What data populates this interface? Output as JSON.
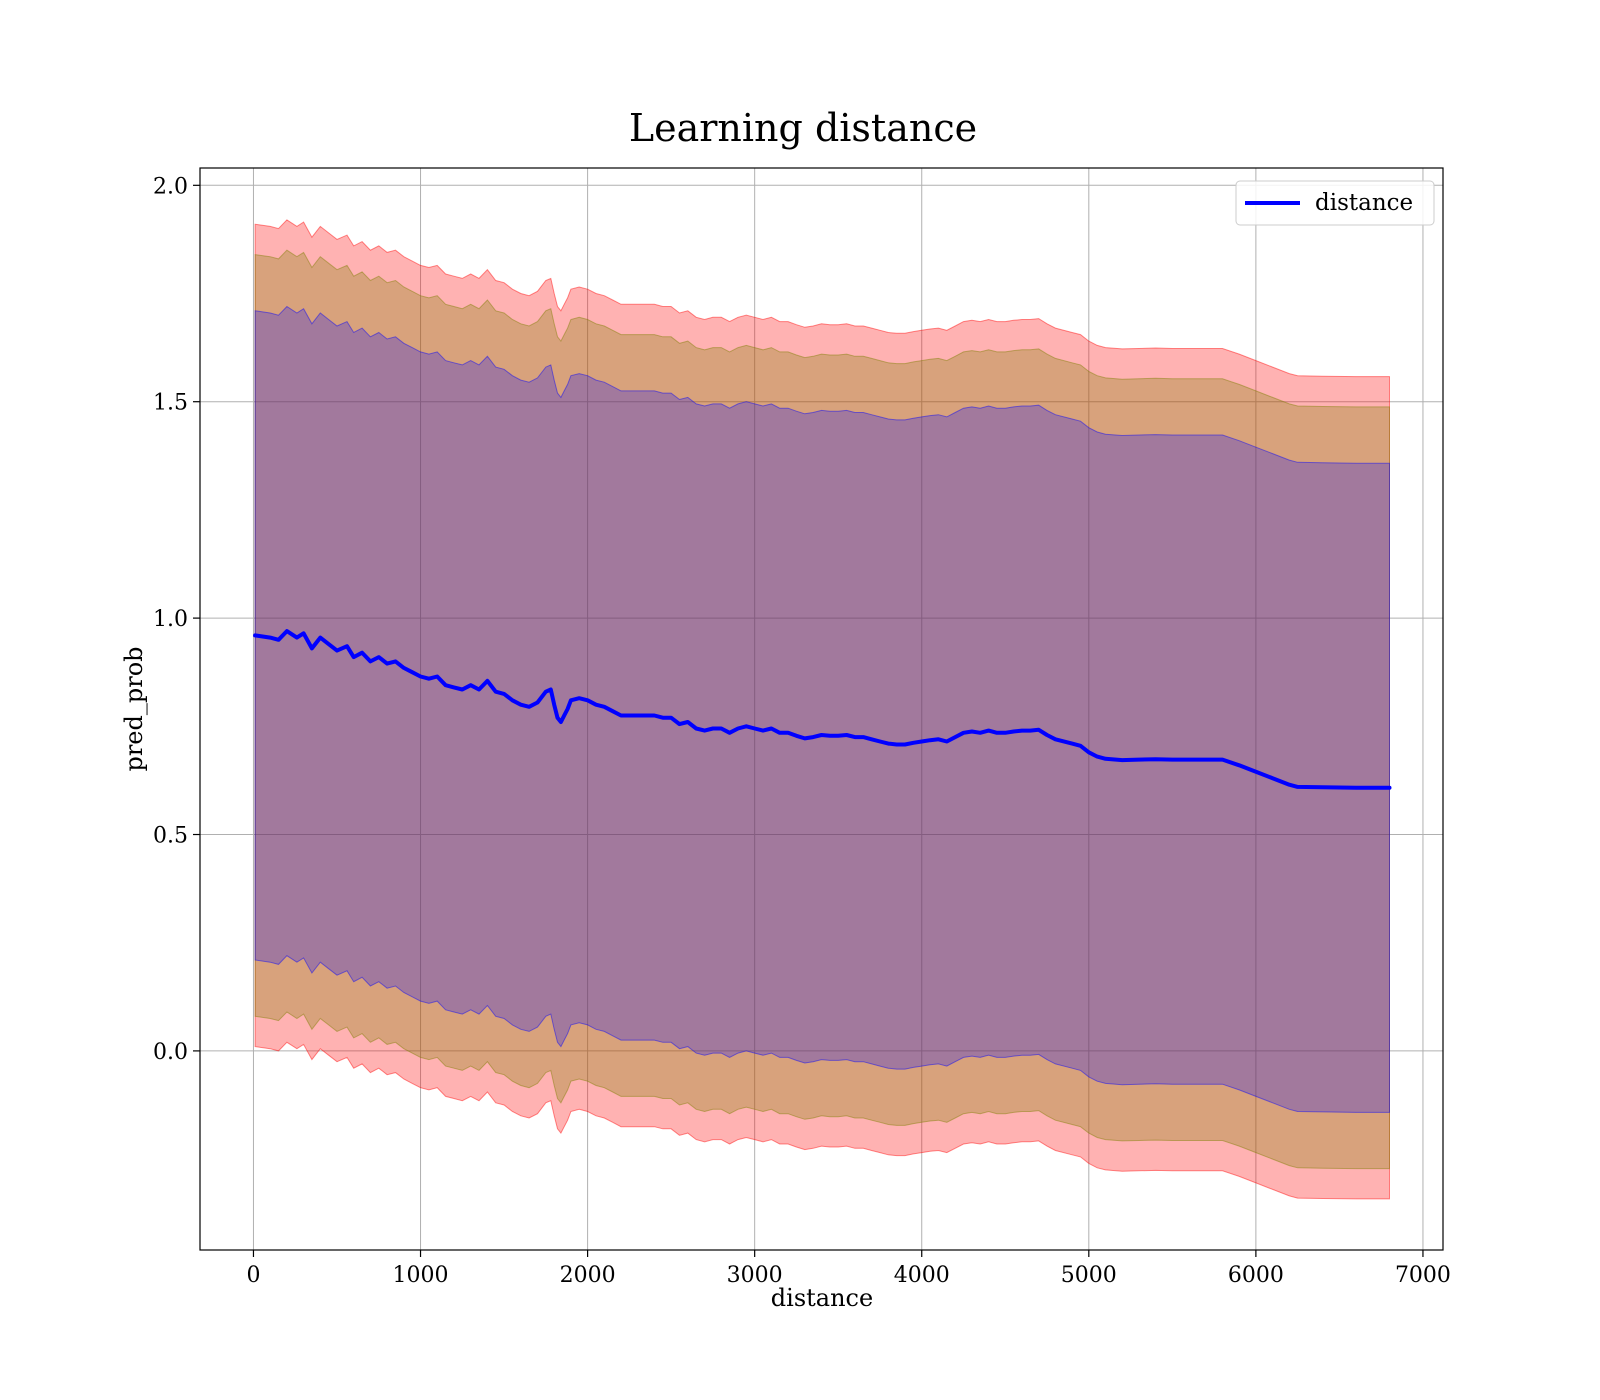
{
  "chart_data": {
    "type": "line",
    "title": "Learning distance",
    "xlabel": "distance",
    "ylabel": "pred_prob",
    "xlim": [
      -320,
      7120
    ],
    "ylim": [
      -0.46,
      2.04
    ],
    "xticks": [
      0,
      1000,
      2000,
      3000,
      4000,
      5000,
      6000,
      7000
    ],
    "xtick_labels": [
      "0",
      "1000",
      "2000",
      "3000",
      "4000",
      "5000",
      "6000",
      "7000"
    ],
    "yticks": [
      0.0,
      0.5,
      1.0,
      1.5,
      2.0
    ],
    "ytick_labels": [
      "0.0",
      "0.5",
      "1.0",
      "1.5",
      "2.0"
    ],
    "grid": true,
    "legend_position": "top-right",
    "series": [
      {
        "name": "distance",
        "color": "#0000ff",
        "x": [
          10,
          100,
          150,
          200,
          260,
          300,
          350,
          400,
          450,
          500,
          560,
          600,
          650,
          700,
          750,
          800,
          850,
          900,
          950,
          1000,
          1050,
          1100,
          1150,
          1200,
          1250,
          1300,
          1350,
          1400,
          1450,
          1500,
          1550,
          1600,
          1650,
          1700,
          1750,
          1780,
          1800,
          1820,
          1840,
          1860,
          1880,
          1900,
          1950,
          2000,
          2050,
          2100,
          2150,
          2200,
          2250,
          2300,
          2400,
          2450,
          2500,
          2550,
          2600,
          2650,
          2700,
          2750,
          2800,
          2850,
          2900,
          2950,
          3000,
          3050,
          3100,
          3150,
          3200,
          3250,
          3300,
          3350,
          3400,
          3450,
          3500,
          3550,
          3600,
          3650,
          3700,
          3750,
          3800,
          3850,
          3900,
          3950,
          4000,
          4050,
          4100,
          4150,
          4200,
          4250,
          4300,
          4350,
          4400,
          4450,
          4500,
          4550,
          4600,
          4650,
          4700,
          4750,
          4800,
          4900,
          4950,
          5000,
          5050,
          5100,
          5200,
          5300,
          5400,
          5500,
          5600,
          5700,
          5800,
          5900,
          6000,
          6100,
          6200,
          6250,
          6400,
          6600,
          6800
        ],
        "y": [
          0.96,
          0.955,
          0.95,
          0.97,
          0.955,
          0.965,
          0.93,
          0.955,
          0.94,
          0.925,
          0.935,
          0.91,
          0.92,
          0.9,
          0.91,
          0.895,
          0.9,
          0.885,
          0.875,
          0.865,
          0.86,
          0.865,
          0.845,
          0.84,
          0.835,
          0.845,
          0.835,
          0.855,
          0.83,
          0.825,
          0.81,
          0.8,
          0.795,
          0.805,
          0.83,
          0.835,
          0.8,
          0.77,
          0.76,
          0.775,
          0.79,
          0.81,
          0.815,
          0.81,
          0.8,
          0.795,
          0.785,
          0.775,
          0.775,
          0.775,
          0.775,
          0.77,
          0.77,
          0.755,
          0.76,
          0.745,
          0.74,
          0.745,
          0.745,
          0.735,
          0.745,
          0.75,
          0.745,
          0.74,
          0.745,
          0.735,
          0.735,
          0.728,
          0.722,
          0.725,
          0.73,
          0.728,
          0.728,
          0.73,
          0.725,
          0.725,
          0.72,
          0.715,
          0.71,
          0.708,
          0.708,
          0.712,
          0.715,
          0.718,
          0.72,
          0.715,
          0.725,
          0.735,
          0.738,
          0.735,
          0.74,
          0.735,
          0.735,
          0.738,
          0.74,
          0.74,
          0.742,
          0.73,
          0.72,
          0.71,
          0.705,
          0.69,
          0.68,
          0.675,
          0.672,
          0.673,
          0.674,
          0.673,
          0.673,
          0.673,
          0.673,
          0.66,
          0.645,
          0.63,
          0.615,
          0.61,
          0.609,
          0.608,
          0.608
        ]
      }
    ],
    "bands": [
      {
        "color": "#ff0000",
        "opacity": 0.3,
        "half_width": 0.95
      },
      {
        "color": "#7f7f00",
        "opacity": 0.3,
        "half_width": 0.88
      },
      {
        "color": "#0000ff",
        "opacity": 0.25,
        "half_width": 0.75
      }
    ]
  }
}
